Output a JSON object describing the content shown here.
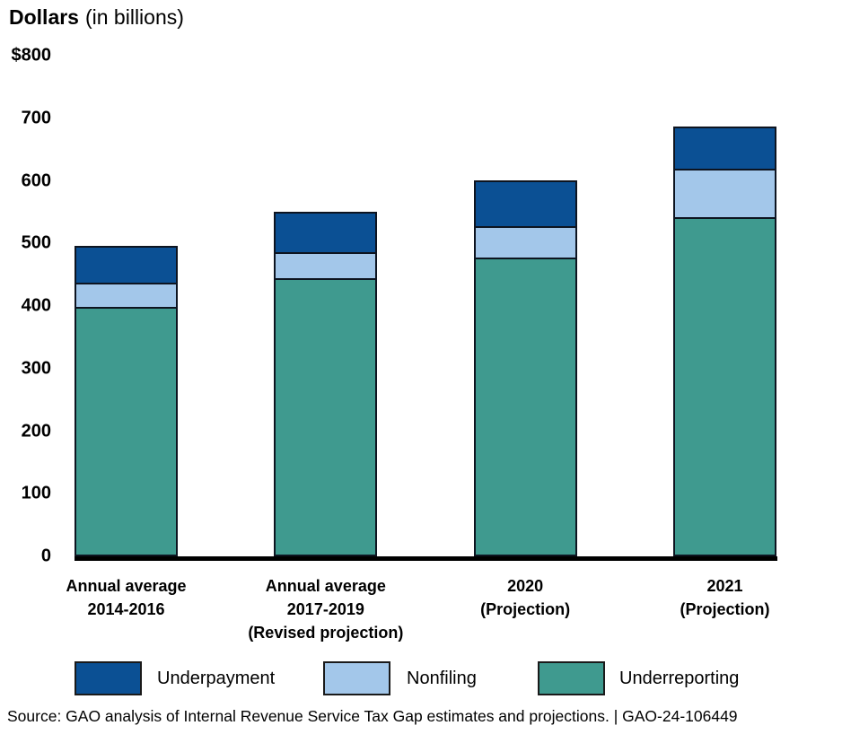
{
  "title": {
    "bold": "Dollars",
    "rest": "(in billions)"
  },
  "legend": {
    "items": [
      {
        "label": "Underpayment",
        "color": "#0b5094"
      },
      {
        "label": "Nonfiling",
        "color": "#a3c7ea"
      },
      {
        "label": "Underreporting",
        "color": "#3f9a8f"
      }
    ]
  },
  "source_line": "Source: GAO analysis of Internal Revenue Service Tax Gap estimates and projections.  |  GAO-24-106449",
  "chart_data": {
    "type": "bar",
    "stacked": true,
    "title": "Dollars (in billions)",
    "xlabel": "",
    "ylabel": "Dollars (in billions)",
    "ylim": [
      0,
      800
    ],
    "grid": false,
    "legend_position": "bottom",
    "yticks": [
      {
        "value": 800,
        "label": "$800"
      },
      {
        "value": 700,
        "label": "700"
      },
      {
        "value": 600,
        "label": "600"
      },
      {
        "value": 500,
        "label": "500"
      },
      {
        "value": 400,
        "label": "400"
      },
      {
        "value": 300,
        "label": "300"
      },
      {
        "value": 200,
        "label": "200"
      },
      {
        "value": 100,
        "label": "100"
      },
      {
        "value": 0,
        "label": "0"
      }
    ],
    "categories": [
      {
        "label": "Annual average 2014-2016",
        "lines": [
          "Annual average",
          "2014-2016"
        ]
      },
      {
        "label": "Annual average 2017-2019 (Revised projection)",
        "lines": [
          "Annual average",
          "2017-2019",
          "(Revised projection)"
        ]
      },
      {
        "label": "2020 (Projection)",
        "lines": [
          "2020",
          "(Projection)"
        ]
      },
      {
        "label": "2021 (Projection)",
        "lines": [
          "2021",
          "(Projection)"
        ]
      }
    ],
    "series": [
      {
        "name": "Underreporting",
        "color": "#3f9a8f",
        "values": [
          398,
          445,
          478,
          542
        ]
      },
      {
        "name": "Nonfiling",
        "color": "#a3c7ea",
        "values": [
          39,
          41,
          50,
          77
        ]
      },
      {
        "name": "Underpayment",
        "color": "#0b5094",
        "values": [
          59,
          64,
          73,
          68
        ]
      }
    ],
    "totals": [
      496,
      550,
      601,
      687
    ]
  }
}
